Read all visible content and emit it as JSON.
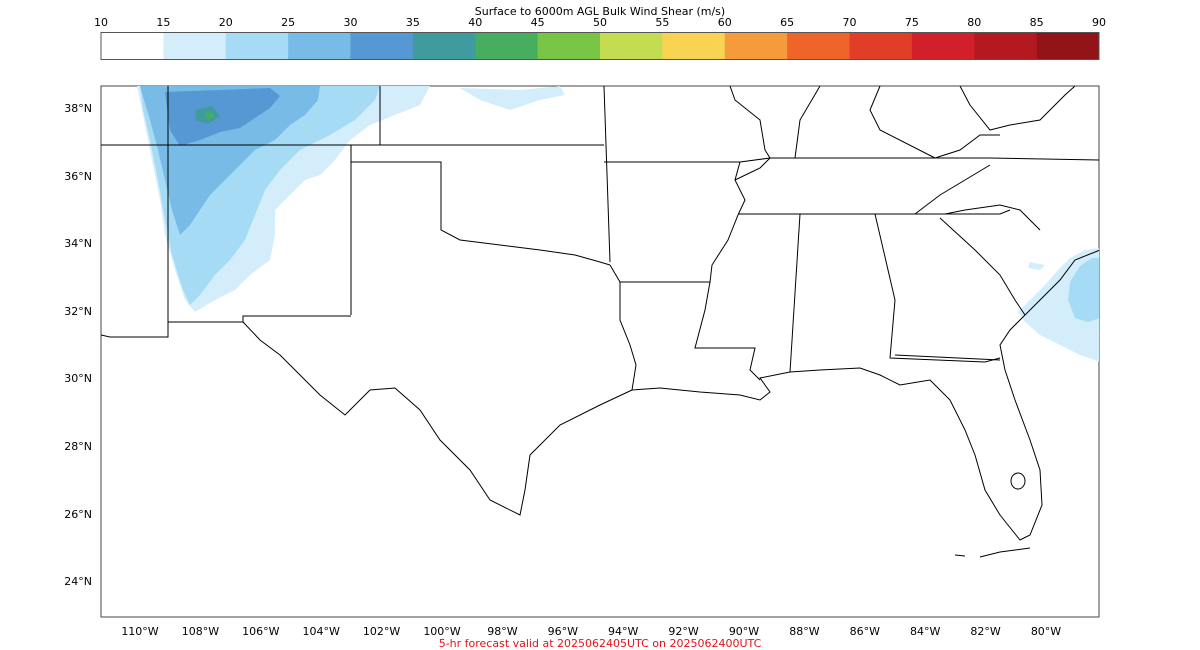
{
  "colorbar": {
    "title": "Surface to 6000m AGL Bulk Wind Shear (m/s)",
    "ticks": [
      "10",
      "15",
      "20",
      "25",
      "30",
      "35",
      "40",
      "45",
      "50",
      "55",
      "60",
      "65",
      "70",
      "75",
      "80",
      "85",
      "90"
    ],
    "colors": [
      "#ffffff",
      "#d4edfb",
      "#a6dbf6",
      "#78bbe6",
      "#5598d3",
      "#3f9b9e",
      "#46ae5e",
      "#78c444",
      "#c3dc52",
      "#f8d452",
      "#f59b3b",
      "#ef6428",
      "#e13e27",
      "#d21f2a",
      "#b3191f",
      "#921419"
    ]
  },
  "map": {
    "lat_labels": [
      "38°N",
      "36°N",
      "34°N",
      "32°N",
      "30°N",
      "28°N",
      "26°N",
      "24°N"
    ],
    "lon_labels": [
      "110°W",
      "108°W",
      "106°W",
      "104°W",
      "102°W",
      "100°W",
      "98°W",
      "96°W",
      "94°W",
      "92°W",
      "90°W",
      "88°W",
      "86°W",
      "84°W",
      "82°W",
      "80°W"
    ],
    "shear_regions": [
      {
        "area": "western New Mexico / southern Colorado",
        "level": "15-30 m/s"
      },
      {
        "area": "Oklahoma panhandle / Kansas border",
        "level": "15-20 m/s"
      },
      {
        "area": "Georgia / South Carolina coast offshore",
        "level": "15-25 m/s"
      }
    ]
  },
  "footer": "5-hr forecast valid at 2025062405UTC on 2025062400UTC"
}
